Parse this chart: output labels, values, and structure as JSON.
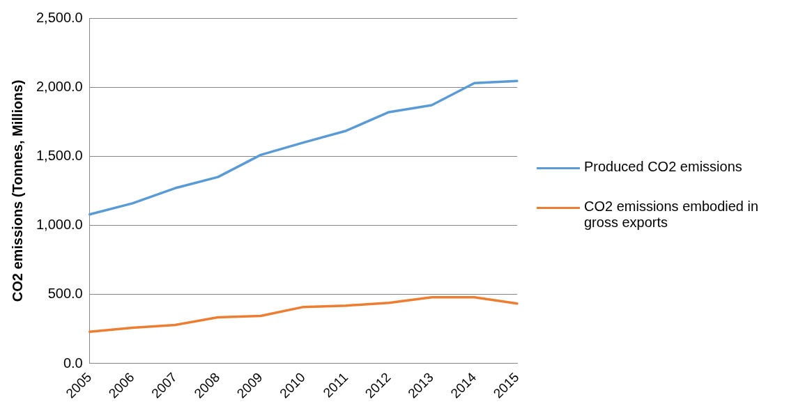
{
  "chart_data": {
    "type": "line",
    "ylabel": "CO2 emissions (Tonnes, Millions)",
    "categories": [
      "2005",
      "2006",
      "2007",
      "2008",
      "2009",
      "2010",
      "2011",
      "2012",
      "2013",
      "2014",
      "2015"
    ],
    "series": [
      {
        "name": "Produced CO2 emissions",
        "color": "#5b9bd5",
        "values": [
          1080,
          1160,
          1270,
          1350,
          1510,
          1600,
          1685,
          1820,
          1870,
          2030,
          2045
        ]
      },
      {
        "name": "CO2 emissions embodied in gross exports",
        "color": "#ed7d31",
        "values": [
          230,
          260,
          280,
          335,
          345,
          410,
          420,
          440,
          480,
          480,
          435
        ]
      }
    ],
    "ylim": [
      0,
      2500
    ],
    "yticks": [
      {
        "value": 0,
        "label": "0.0"
      },
      {
        "value": 500,
        "label": "500.0"
      },
      {
        "value": 1000,
        "label": "1,000.0"
      },
      {
        "value": 1500,
        "label": "1,500.0"
      },
      {
        "value": 2000,
        "label": "2,000.0"
      },
      {
        "value": 2500,
        "label": "2,500.0"
      }
    ],
    "grid": "y",
    "legend": "right",
    "marker": "none",
    "line_style": "solid"
  }
}
